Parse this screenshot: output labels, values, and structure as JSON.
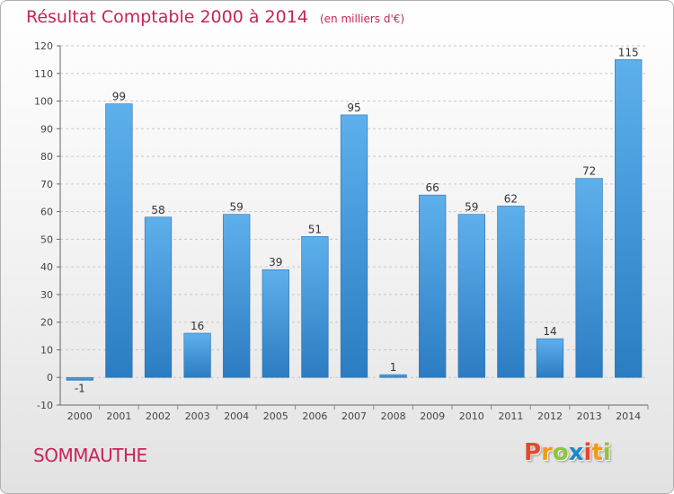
{
  "header": {
    "title": "Résultat Comptable 2000 à 2014",
    "subtitle": "(en milliers d'€)"
  },
  "footer": {
    "commune": "SOMMAUTHE",
    "logo": {
      "letters": [
        "P",
        "r",
        "o",
        "x",
        "i",
        "t",
        "i"
      ],
      "colors": [
        "#e8452c",
        "#f39c12",
        "#8dc63f",
        "#1e88c8",
        "#e8452c",
        "#f39c12",
        "#8dc63f"
      ]
    }
  },
  "chart_data": {
    "type": "bar",
    "title": "Résultat Comptable 2000 à 2014",
    "subtitle": "(en milliers d'€)",
    "categories": [
      "2000",
      "2001",
      "2002",
      "2003",
      "2004",
      "2005",
      "2006",
      "2007",
      "2008",
      "2009",
      "2010",
      "2011",
      "2012",
      "2013",
      "2014"
    ],
    "values": [
      -1,
      99,
      58,
      16,
      59,
      39,
      51,
      95,
      1,
      66,
      59,
      62,
      14,
      72,
      115
    ],
    "ylim": [
      -10,
      120
    ],
    "yticks": [
      -10,
      0,
      10,
      20,
      30,
      40,
      50,
      60,
      70,
      80,
      90,
      100,
      110,
      120
    ],
    "grid": "horizontal dashed",
    "bar_color": "#3d8fd6",
    "bar_color_light": "#5eb0ec"
  }
}
